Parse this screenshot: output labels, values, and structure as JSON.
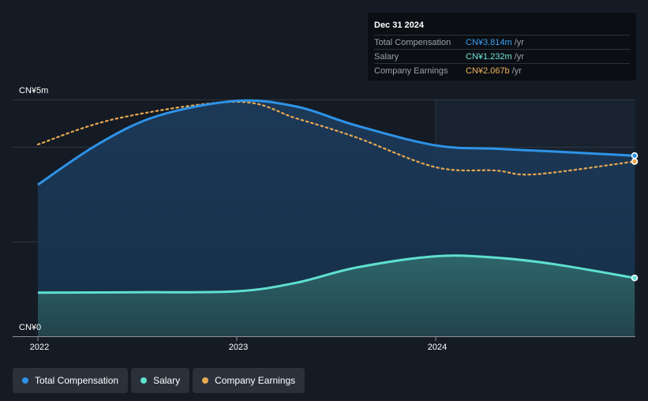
{
  "tooltip": {
    "date": "Dec 31 2024",
    "rows": [
      {
        "label": "Total Compensation",
        "value": "CN¥3.814m",
        "unit": "/yr",
        "color": "#3aa0f0"
      },
      {
        "label": "Salary",
        "value": "CN¥1.232m",
        "unit": "/yr",
        "color": "#6ee7d8"
      },
      {
        "label": "Company Earnings",
        "value": "CN¥2.067b",
        "unit": "/yr",
        "color": "#f0b25a"
      }
    ]
  },
  "legend": [
    {
      "label": "Total Compensation",
      "color": "#2e93e8"
    },
    {
      "label": "Salary",
      "color": "#5fe0d0"
    },
    {
      "label": "Company Earnings",
      "color": "#e8a850"
    }
  ],
  "chart_data": {
    "type": "area",
    "x_ticks": [
      "2022",
      "2023",
      "2024"
    ],
    "y_ticks": [
      "CN¥5m",
      "CN¥0"
    ],
    "ylim": [
      0,
      5
    ],
    "grid": true,
    "series": [
      {
        "name": "Total Compensation",
        "color": "#2e93e8",
        "points": [
          [
            2022.0,
            3.2
          ],
          [
            2022.3,
            4.05
          ],
          [
            2022.6,
            4.65
          ],
          [
            2023.0,
            4.97
          ],
          [
            2023.3,
            4.85
          ],
          [
            2023.6,
            4.45
          ],
          [
            2024.0,
            4.03
          ],
          [
            2024.3,
            3.96
          ],
          [
            2024.6,
            3.9
          ],
          [
            2025.0,
            3.814
          ]
        ]
      },
      {
        "name": "Salary",
        "color": "#5fe0d0",
        "points": [
          [
            2022.0,
            0.92
          ],
          [
            2022.5,
            0.93
          ],
          [
            2023.0,
            0.95
          ],
          [
            2023.3,
            1.13
          ],
          [
            2023.6,
            1.45
          ],
          [
            2024.0,
            1.69
          ],
          [
            2024.3,
            1.66
          ],
          [
            2024.6,
            1.52
          ],
          [
            2025.0,
            1.232
          ]
        ]
      },
      {
        "name": "Company Earnings",
        "color": "#e8a850",
        "dashed": true,
        "points": [
          [
            2022.0,
            4.05
          ],
          [
            2022.4,
            4.6
          ],
          [
            2023.0,
            4.95
          ],
          [
            2023.3,
            4.6
          ],
          [
            2023.6,
            4.2
          ],
          [
            2024.0,
            3.57
          ],
          [
            2024.3,
            3.5
          ],
          [
            2024.5,
            3.42
          ],
          [
            2025.0,
            3.69
          ]
        ]
      }
    ]
  }
}
